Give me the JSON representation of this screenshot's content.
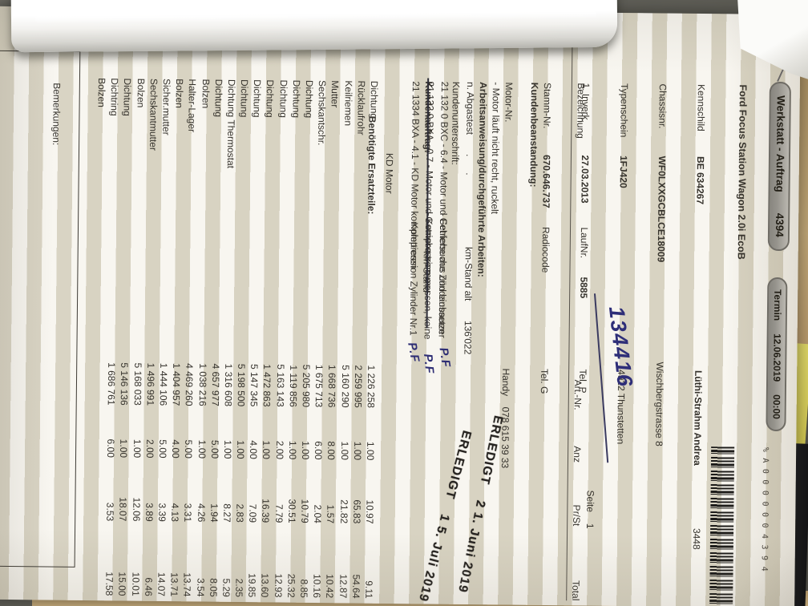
{
  "document": {
    "title": "Werkstatt - Auftrag",
    "order_number": "4394",
    "termin_label": "Termin",
    "termin_date": "12.06.2019",
    "termin_time": "00:00",
    "barcode_text": "%A0000004394",
    "page_label": "Seite",
    "page_number": "1"
  },
  "vehicle": {
    "model": "Ford Focus Station Wagon 2.0i EcoB",
    "kennschild_label": "Kennschild",
    "kennschild": "BE 634267",
    "chassisnr_label": "Chassisnr.",
    "chassisnr": "WF0LXXGCBLCE18009",
    "typenschein_label": "Typenschein",
    "typenschein": "1FJ420",
    "inverk_label": "1. Inverk.",
    "inverk": "27.03.2013",
    "laufnr_label": "LaufNr.",
    "laufnr": "5885",
    "stammnr_label": "Stamm-Nr.",
    "stammnr": "670.646.737",
    "radiocode_label": "Radiocode",
    "motornr_label": "Motor-Nr.",
    "abgastest_label": "n. Abgastest",
    "abgastest": ".      ."
  },
  "customer": {
    "name": "Lüthi-Strahm Andrea",
    "number": "3448",
    "street": "Wischbergstrasse 8",
    "city": "4922 Thunstetten",
    "tel_p_label": "Tel. P",
    "tel_g_label": "Tel. G",
    "handy_label": "Handy",
    "handy": "078 615 39 33"
  },
  "auftrag": {
    "label": "Kundenauftrag:",
    "value": "KD Motor",
    "km_alt_label": "km-Stand alt",
    "km_alt": "136'022",
    "km_label": "km-Stand"
  },
  "table_columns": {
    "bezeichnung": "Bezeichnung",
    "art_nr": "Art.-Nr.",
    "anz": "Anz",
    "pr_st": "Pr/St",
    "total": "Total"
  },
  "beanstandung": {
    "heading": "Kundenbeanstandung:",
    "line": "- Motor läuft nicht recht, ruckelt",
    "signature_label": "Kundenunterschrift:"
  },
  "arbeiten": {
    "heading": "Arbeitsanweisung/durchgeführte Arbeiten:",
    "notes": [
      "- Fehlersuche Zündaussetzer",
      "- Kompression messen, keine",
      "Kompression Zylinder Nr.1"
    ],
    "items": [
      {
        "text": "21 132 0 BXC - 6.4 - Motor und Getriebe aus und einbauen",
        "struck": false
      },
      {
        "text": "21 132 0 BXA - 0.7 - Motor und Getriebe trennen",
        "struck": true
      },
      {
        "text": "21 1334 BXA - 4.1 - KD Motor komplettieren",
        "struck": false
      }
    ]
  },
  "ersatzteile": {
    "heading": "Benötigte Ersatzteile:",
    "rows": [
      {
        "name": "Dichtung",
        "art": "1 226 258",
        "anz": "1.00",
        "pr": "10.97",
        "total": "9.11"
      },
      {
        "name": "Rücklaufrohr",
        "art": "2 259 995",
        "anz": "1.00",
        "pr": "65.83",
        "total": "54.64"
      },
      {
        "name": "Keilriemen",
        "art": "5 160 290",
        "anz": "1.00",
        "pr": "21.82",
        "total": "12.87"
      },
      {
        "name": "Mutter",
        "art": "1 668 736",
        "anz": "8.00",
        "pr": "1.57",
        "total": "10.42"
      },
      {
        "name": "Sechskantschr.",
        "art": "1 675 713",
        "anz": "6.00",
        "pr": "2.04",
        "total": "10.16"
      },
      {
        "name": "Dichtung",
        "art": "5 205 980",
        "anz": "1.00",
        "pr": "10.79",
        "total": "8.85"
      },
      {
        "name": "Dichtung",
        "art": "1 119 856",
        "anz": "1.00",
        "pr": "30.51",
        "total": "25.32"
      },
      {
        "name": "Dichtung",
        "art": "5 163 143",
        "anz": "2.00",
        "pr": "7.79",
        "total": "12.93"
      },
      {
        "name": "Dichtung",
        "art": "1 472 863",
        "anz": "1.00",
        "pr": "16.39",
        "total": "13.60"
      },
      {
        "name": "Dichtung",
        "art": "5 147 345",
        "anz": "4.00",
        "pr": "7.09",
        "total": "19.85"
      },
      {
        "name": "Dichtung",
        "art": "5 198 500",
        "anz": "1.00",
        "pr": "2.83",
        "total": "2.35"
      },
      {
        "name": "Dichtung Thermostat",
        "art": "1 316 608",
        "anz": "1.00",
        "pr": "8.27",
        "total": "5.29"
      },
      {
        "name": "Dichtung",
        "art": "4 657 977",
        "anz": "5.00",
        "pr": "1.94",
        "total": "8.05"
      },
      {
        "name": "Bolzen",
        "art": "1 038 216",
        "anz": "1.00",
        "pr": "4.26",
        "total": "3.54"
      },
      {
        "name": "Halter-Lager",
        "art": "4 469 260",
        "anz": "5.00",
        "pr": "3.31",
        "total": "13.74"
      },
      {
        "name": "Bolzen",
        "art": "1 404 957",
        "anz": "4.00",
        "pr": "4.13",
        "total": "13.71"
      },
      {
        "name": "Sicher.mutter",
        "art": "1 444 106",
        "anz": "5.00",
        "pr": "3.39",
        "total": "14.07"
      },
      {
        "name": "Sechskantmutter",
        "art": "1 496 991",
        "anz": "2.00",
        "pr": "3.89",
        "total": "6.46"
      },
      {
        "name": "Bolzen",
        "art": "5 168 033",
        "anz": "1.00",
        "pr": "12.06",
        "total": "10.01"
      },
      {
        "name": "Dichtung",
        "art": "5 146 136",
        "anz": "1.00",
        "pr": "18.07",
        "total": "15.00"
      },
      {
        "name": "Dichtring",
        "art": "1 686 761",
        "anz": "6.00",
        "pr": "3.53",
        "total": "17.58"
      },
      {
        "name": "Bolzen",
        "art": "",
        "anz": "",
        "pr": "",
        "total": ""
      }
    ]
  },
  "stamps": [
    {
      "text": "ERLEDIGT",
      "date": "2 1. Juni 2019"
    },
    {
      "text": "ERLEDIGT",
      "date": "1 5. Juli 2019"
    }
  ],
  "handwriting": {
    "km_stand": "134416",
    "pf": "P.F"
  },
  "bemerkungen_label": "Bemerkungen:",
  "colors": {
    "paper_stripe": "#d8d3c2",
    "handwriting_ink": "#2e2e78",
    "stamp_ink": "#262320"
  }
}
